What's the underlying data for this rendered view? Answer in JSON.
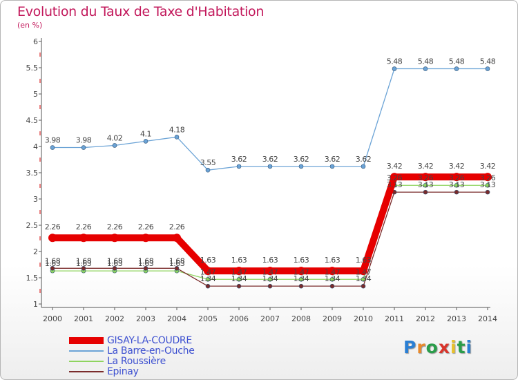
{
  "page": {
    "title": "Evolution du Taux de Taxe d'Habitation",
    "unit": "(en %)"
  },
  "logo": {
    "text": "Proxiti",
    "letter_colors": [
      "#2a7fd4",
      "#e8892c",
      "#2a9d4a",
      "#d9342b",
      "#e8c12c",
      "#2a9d4a",
      "#2a7fd4"
    ]
  },
  "chart_data": {
    "type": "line",
    "title": "Evolution du Taux de Taxe d'Habitation",
    "ylabel": "(en %)",
    "xlabel": "",
    "ylim": [
      1,
      6
    ],
    "yticks": [
      "1",
      "1.5",
      "2",
      "2.5",
      "3",
      "3.5",
      "4",
      "4.5",
      "5",
      "5.5",
      "6"
    ],
    "x": [
      "2000",
      "2001",
      "2002",
      "2003",
      "2004",
      "2005",
      "2006",
      "2007",
      "2008",
      "2009",
      "2010",
      "2011",
      "2012",
      "2013",
      "2014"
    ],
    "legend_position": "bottom-left",
    "series": [
      {
        "name": "GISAY-LA-COUDRE",
        "color": "#e60000",
        "values": [
          2.26,
          2.26,
          2.26,
          2.26,
          2.26,
          1.63,
          1.63,
          1.63,
          1.63,
          1.63,
          1.63,
          3.42,
          3.42,
          3.42,
          3.42
        ],
        "labels": [
          "2.26",
          "2.26",
          "2.26",
          "2.26",
          "2.26",
          "1.63",
          "1.63",
          "1.63",
          "1.63",
          "1.63",
          "1.63",
          "3.42",
          "3.42",
          "3.42",
          "3.42"
        ]
      },
      {
        "name": "La Barre-en-Ouche",
        "color": "#6ba3d6",
        "values": [
          3.98,
          3.98,
          4.02,
          4.1,
          4.18,
          3.55,
          3.62,
          3.62,
          3.62,
          3.62,
          3.62,
          5.48,
          5.48,
          5.48,
          5.48
        ],
        "labels": [
          "3.98",
          "3.98",
          "4.02",
          "4.1",
          "4.18",
          "3.55",
          "3.62",
          "3.62",
          "3.62",
          "3.62",
          "3.62",
          "5.48",
          "5.48",
          "5.48",
          "5.48"
        ]
      },
      {
        "name": "La Roussière",
        "color": "#8ed45f",
        "values": [
          1.63,
          1.63,
          1.63,
          1.63,
          1.63,
          1.47,
          1.47,
          1.47,
          1.47,
          1.47,
          1.47,
          3.26,
          3.26,
          3.26,
          3.26
        ],
        "labels": [
          "1.63",
          "1.63",
          "1.63",
          "1.63",
          "1.63",
          "1.47",
          "1.47",
          "1.47",
          "1.47",
          "1.47",
          "1.47",
          "3.26",
          "3.26",
          "3.26",
          "3.26"
        ]
      },
      {
        "name": "Epinay",
        "color": "#7a2b2b",
        "values": [
          1.68,
          1.68,
          1.68,
          1.68,
          1.68,
          1.34,
          1.34,
          1.34,
          1.34,
          1.34,
          1.34,
          3.13,
          3.13,
          3.13,
          3.13
        ],
        "labels": [
          "1.68",
          "1.68",
          "1.68",
          "1.68",
          "1.68",
          "1.34",
          "1.34",
          "1.34",
          "1.34",
          "1.34",
          "1.34",
          "3.13",
          "3.13",
          "3.13",
          "3.13"
        ]
      }
    ]
  }
}
